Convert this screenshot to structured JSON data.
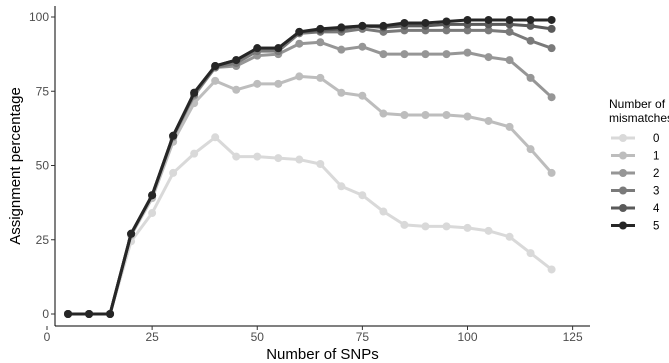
{
  "chart_data": {
    "type": "line",
    "xlabel": "Number of SNPs",
    "ylabel": "Assignment percentage",
    "xlim": [
      0,
      125
    ],
    "ylim": [
      0,
      100
    ],
    "x_ticks": [
      0,
      25,
      50,
      75,
      100,
      125
    ],
    "y_ticks": [
      0,
      25,
      50,
      75,
      100
    ],
    "grid": false,
    "legend": {
      "title": "Number of\nmismatches",
      "position": "right"
    },
    "x": [
      5,
      10,
      15,
      20,
      25,
      30,
      35,
      40,
      45,
      50,
      55,
      60,
      65,
      70,
      75,
      80,
      85,
      90,
      95,
      100,
      105,
      110,
      115,
      120
    ],
    "series": [
      {
        "name": "0",
        "color": "#d9d9d9",
        "values": [
          0,
          0,
          0,
          24.5,
          34,
          47.5,
          54,
          59.5,
          53,
          53,
          52.5,
          52,
          50.5,
          43,
          40,
          34.5,
          30,
          29.5,
          29.5,
          29,
          28,
          26,
          20.5,
          15
        ]
      },
      {
        "name": "1",
        "color": "#bdbdbd",
        "values": [
          0,
          0,
          0,
          26.5,
          39,
          58,
          71,
          78.5,
          75.5,
          77.5,
          77.5,
          80,
          79.5,
          74.5,
          73.5,
          67.5,
          67,
          67,
          67,
          66.5,
          65,
          63,
          55.5,
          47.5
        ]
      },
      {
        "name": "2",
        "color": "#969696",
        "values": [
          0,
          0,
          0,
          27,
          40,
          59.5,
          73.5,
          83,
          83.5,
          87,
          87.5,
          91,
          91.5,
          89,
          90,
          87.5,
          87.5,
          87.5,
          87.5,
          88,
          86.5,
          85.5,
          79.5,
          73
        ]
      },
      {
        "name": "3",
        "color": "#7a7a7a",
        "values": [
          0,
          0,
          0,
          27,
          40,
          60,
          74,
          83,
          84.5,
          88.5,
          88.5,
          94.5,
          95,
          95,
          96,
          95,
          95.5,
          95.5,
          95.5,
          95.5,
          95.5,
          95,
          92,
          89.5
        ]
      },
      {
        "name": "4",
        "color": "#5a5a5a",
        "values": [
          0,
          0,
          0,
          27,
          40,
          60,
          74.5,
          83.5,
          85.5,
          89.5,
          89.5,
          95,
          95.5,
          96,
          97,
          96.5,
          97,
          97,
          97.5,
          97.5,
          97.5,
          97.5,
          97,
          96
        ]
      },
      {
        "name": "5",
        "color": "#262626",
        "values": [
          0,
          0,
          0,
          27,
          40,
          60,
          74.5,
          83.5,
          85.5,
          89.5,
          89.5,
          95,
          96,
          96.5,
          97,
          97,
          98,
          98,
          98.5,
          99,
          99,
          99,
          99,
          99
        ]
      }
    ]
  }
}
